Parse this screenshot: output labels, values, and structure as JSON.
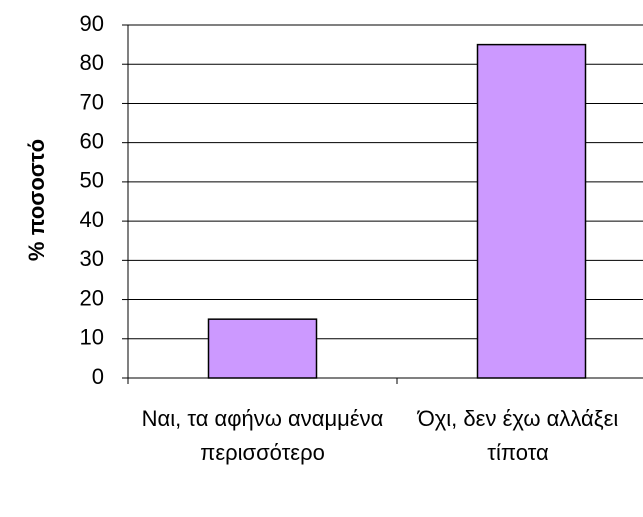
{
  "chart_data": {
    "type": "bar",
    "y_label": "% ποσοστό",
    "categories": [
      "Ναι, τα αφήνω αναμμένα περισσότερο",
      "Όχι, δεν έχω αλλάξει τίποτα"
    ],
    "values": [
      15,
      85
    ],
    "color": "#cc99ff",
    "ylim": [
      0,
      90
    ],
    "yticks": [
      0,
      10,
      20,
      30,
      40,
      50,
      60,
      70,
      80,
      90
    ],
    "grid": true
  }
}
